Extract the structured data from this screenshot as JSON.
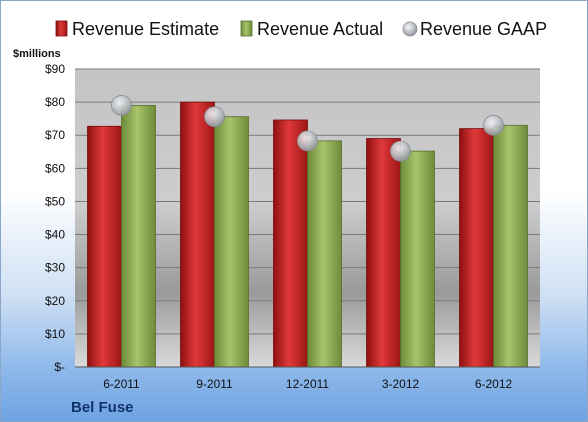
{
  "company": "Bel Fuse",
  "chart_data": {
    "type": "bar",
    "title": "",
    "ylabel": "$millions",
    "xlabel": "",
    "categories": [
      "6-2011",
      "9-2011",
      "12-2011",
      "3-2012",
      "6-2012"
    ],
    "series": [
      {
        "name": "Revenue Estimate",
        "type": "bar",
        "color": "#d42a2a",
        "values": [
          72.7,
          80.0,
          74.6,
          69.0,
          72.0
        ]
      },
      {
        "name": "Revenue Actual",
        "type": "bar",
        "color": "#8fae58",
        "values": [
          79.0,
          75.6,
          68.3,
          65.2,
          73.0
        ]
      },
      {
        "name": "Revenue GAAP",
        "type": "marker",
        "color": "#b4b8be",
        "values": [
          79.0,
          75.6,
          68.3,
          65.2,
          73.0
        ]
      }
    ],
    "yticks": [
      "$-",
      "$10",
      "$20",
      "$30",
      "$40",
      "$50",
      "$60",
      "$70",
      "$80",
      "$90"
    ],
    "ylim": [
      0,
      90
    ],
    "grid": true,
    "legend": "top"
  }
}
